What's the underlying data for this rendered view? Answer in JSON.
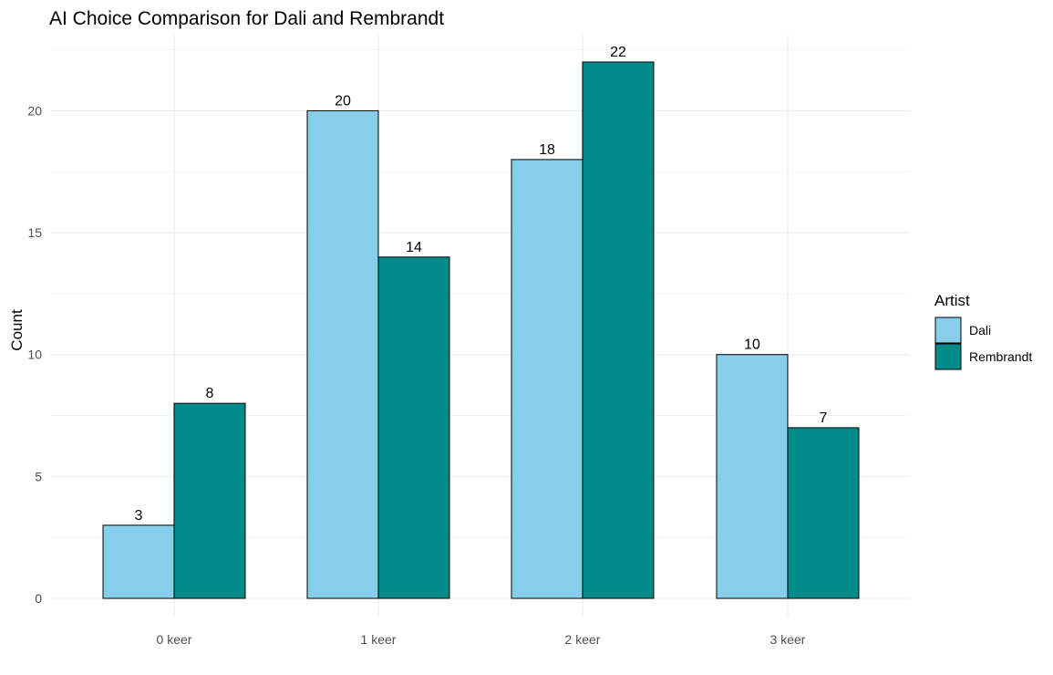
{
  "chart_data": {
    "type": "bar",
    "title": "AI Choice Comparison for Dali and Rembrandt",
    "xlabel": "",
    "ylabel": "Count",
    "categories": [
      "0 keer",
      "1 keer",
      "2 keer",
      "3 keer"
    ],
    "series": [
      {
        "name": "Dali",
        "values": [
          3,
          20,
          18,
          10
        ],
        "color": "#87ceeb"
      },
      {
        "name": "Rembrandt",
        "values": [
          8,
          14,
          22,
          7
        ],
        "color": "#008b8b"
      }
    ],
    "ylim": [
      0,
      22
    ],
    "yticks": [
      "0",
      "5",
      "10",
      "15",
      "20"
    ],
    "ytick_values": [
      0,
      5,
      10,
      15,
      20
    ],
    "grid": true,
    "legend": {
      "title": "Artist",
      "position": "right"
    }
  }
}
